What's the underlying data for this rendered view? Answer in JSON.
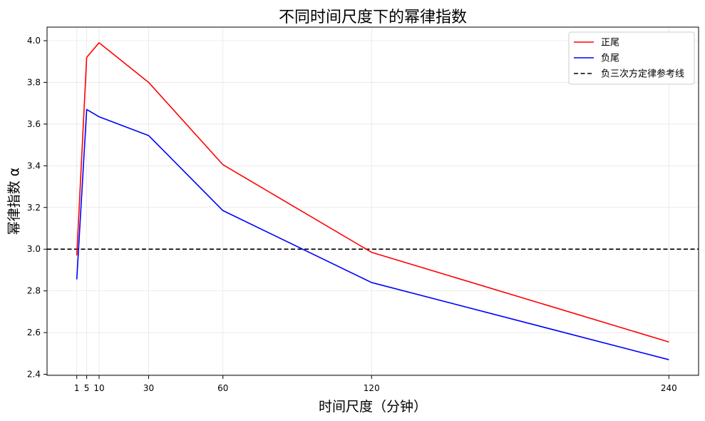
{
  "chart_data": {
    "type": "line",
    "title": "不同时间尺度下的幂律指数",
    "xlabel": "时间尺度（分钟）",
    "ylabel": "幂律指数 α",
    "x": [
      1,
      5,
      10,
      30,
      60,
      120,
      240
    ],
    "x_ticks": [
      1,
      5,
      10,
      30,
      60,
      120,
      240
    ],
    "y_ticks": [
      "2.4",
      "2.6",
      "2.8",
      "3.0",
      "3.2",
      "3.4",
      "3.6",
      "3.8",
      "4.0"
    ],
    "xlim": [
      -11,
      252
    ],
    "ylim": [
      2.395,
      4.065
    ],
    "grid": true,
    "legend_position": "top-right",
    "series": [
      {
        "name": "正尾",
        "color": "#ff0000",
        "style": "solid",
        "values": [
          2.97,
          3.92,
          3.99,
          3.8,
          3.405,
          2.985,
          2.555
        ]
      },
      {
        "name": "负尾",
        "color": "#0000ff",
        "style": "solid",
        "values": [
          2.855,
          3.67,
          3.635,
          3.545,
          3.185,
          2.84,
          2.47
        ]
      }
    ],
    "reference_lines": [
      {
        "name": "负三次方定律参考线",
        "y": 3.0,
        "color": "#000000",
        "style": "dashed"
      }
    ]
  }
}
